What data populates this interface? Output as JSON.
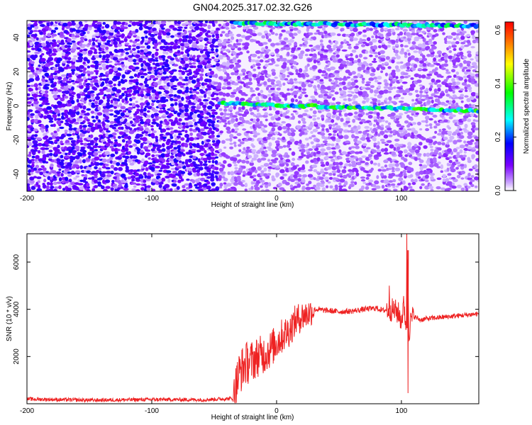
{
  "figure": {
    "title": "GN04.2025.317.02.32.G26"
  },
  "chart_data": [
    {
      "type": "heatmap",
      "xlabel": "Height of straight line (km)",
      "ylabel": "Frequency (Hz)",
      "xlim": [
        -200,
        162
      ],
      "ylim": [
        -50,
        50
      ],
      "x_ticks": [
        -200,
        -100,
        0,
        100
      ],
      "y_ticks": [
        -40,
        -20,
        0,
        20,
        40
      ],
      "grid": false,
      "colorbar": {
        "label": "Normalized spectral amplitude",
        "range": [
          0.0,
          0.63
        ],
        "ticks": [
          0.0,
          0.2,
          0.4,
          0.6
        ],
        "colormap": [
          "#ffffff",
          "#7a00ff",
          "#0000ff",
          "#00ffff",
          "#00ff00",
          "#ffff00",
          "#ff0000"
        ]
      },
      "ridges": [
        {
          "x_start": -45,
          "x_end": 162,
          "y_start": 1.5,
          "y_end": -3.0,
          "amplitude": 0.35
        },
        {
          "x_start": -35,
          "x_end": 162,
          "y_start": 48.5,
          "y_end": 47.0,
          "amplitude": 0.3
        }
      ],
      "background": {
        "noisy_region_x": [
          -200,
          -45
        ],
        "amplitude": 0.1
      }
    },
    {
      "type": "line",
      "xlabel": "Height of straight line (km)",
      "ylabel": "SNR (10 * v/v)",
      "xlim": [
        -200,
        162
      ],
      "ylim": [
        0,
        7200
      ],
      "x_ticks": [
        -200,
        -100,
        0,
        100
      ],
      "y_ticks": [
        2000,
        4000,
        6000
      ],
      "grid": false,
      "color": "#ee2222",
      "series": [
        {
          "x": [
            -200,
            -150,
            -100,
            -60,
            -35,
            -30,
            -25,
            -20,
            -15,
            -10,
            -5,
            0,
            5,
            10,
            15,
            20,
            25,
            30,
            40,
            50,
            60,
            70,
            80,
            85,
            90,
            95,
            98,
            100,
            102,
            104,
            105,
            106,
            108,
            110,
            115,
            120,
            130,
            140,
            150,
            160,
            162
          ],
          "y": [
            200,
            150,
            180,
            170,
            220,
            1300,
            1700,
            1800,
            2000,
            2100,
            2300,
            2600,
            2900,
            3100,
            3500,
            3700,
            3800,
            4000,
            3950,
            3900,
            3920,
            4000,
            4050,
            3950,
            4000,
            3950,
            3800,
            3500,
            4200,
            3200,
            6500,
            3000,
            3600,
            3700,
            3550,
            3600,
            3650,
            3700,
            3750,
            3800,
            3800
          ]
        }
      ],
      "annotations": [
        {
          "x": 90,
          "y": 5000,
          "label": ""
        },
        {
          "x": 104,
          "y": 7200,
          "label": ""
        },
        {
          "x": 105,
          "y": 450,
          "label": ""
        }
      ]
    }
  ]
}
